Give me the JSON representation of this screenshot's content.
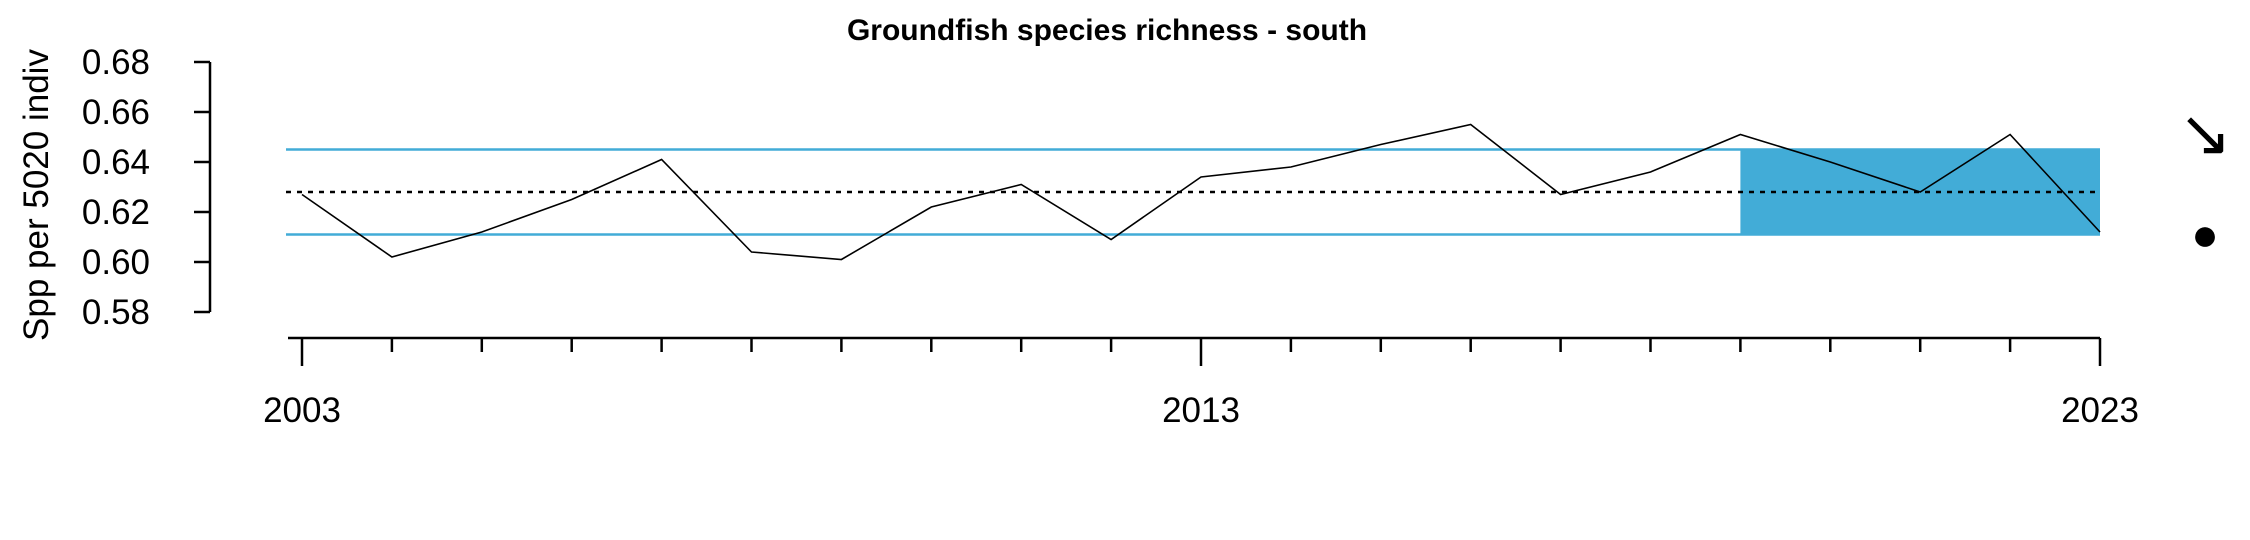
{
  "chart_data": {
    "type": "line",
    "title": "Groundfish species richness - south",
    "xlabel": "",
    "ylabel": "Spp per 5020 indiv",
    "x": [
      2003,
      2004,
      2005,
      2006,
      2007,
      2008,
      2009,
      2010,
      2011,
      2012,
      2013,
      2014,
      2015,
      2016,
      2017,
      2018,
      2019,
      2020,
      2021,
      2022,
      2023
    ],
    "series": [
      {
        "values": [
          0.627,
          0.602,
          0.612,
          0.625,
          0.641,
          0.604,
          0.601,
          0.622,
          0.631,
          0.609,
          0.634,
          0.638,
          0.647,
          0.655,
          0.627,
          0.636,
          0.651,
          0.64,
          0.628,
          0.651,
          0.612
        ],
        "color": "#000000"
      }
    ],
    "reference_lines": {
      "mean": 0.628,
      "upper": 0.645,
      "lower": 0.611,
      "mean_style": "dotted",
      "band_color": "#42ACD7"
    },
    "highlight_window": {
      "x_start": 2019,
      "x_end": 2023,
      "color": "#42ACD7"
    },
    "xlim": [
      2003,
      2023
    ],
    "ylim": [
      0.58,
      0.68
    ],
    "x_tick_labels": [
      "2003",
      "2013",
      "2023"
    ],
    "y_tick_labels": [
      "0.58",
      "0.60",
      "0.62",
      "0.64",
      "0.66",
      "0.68"
    ],
    "grid": false,
    "legend": "none",
    "trend_symbol": "↘",
    "status_symbol": "●"
  }
}
